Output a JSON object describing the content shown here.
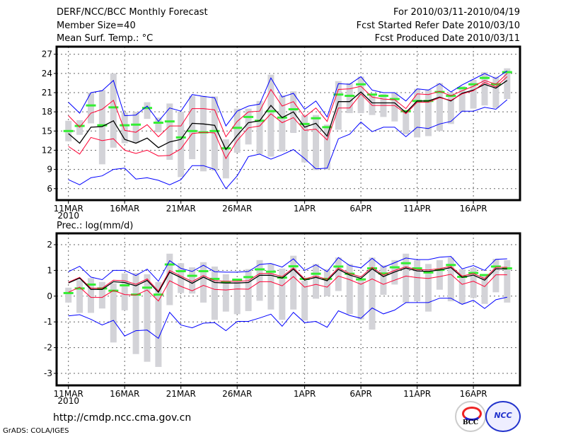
{
  "header": {
    "title": "DERF/NCC/BCC Monthly Forecast",
    "member_size": "Member Size=40",
    "variable": "Mean Surf. Temp.: °C",
    "period": "For 2010/03/11-2010/04/19",
    "started": "Fcst Started Refer Date 2010/03/10",
    "produced": "Fcst Produced Date 2010/03/11"
  },
  "footer": {
    "url": "http://cmdp.ncc.cma.gov.cn",
    "grads": "GrADS: COLA/IGES",
    "logo_bcc": "BCC",
    "logo_ncc": "NCC"
  },
  "colors": {
    "max_min": "#0000ff",
    "spread": "#ff0033",
    "mean": "#000000",
    "obs": "#33ee33",
    "bars": "#d3d3d8"
  },
  "chart_data": [
    {
      "type": "line",
      "title": "Mean Surf. Temp.: °C",
      "ylim": [
        4,
        28
      ],
      "y_ticks": [
        "6",
        "9",
        "12",
        "15",
        "18",
        "21",
        "24",
        "27"
      ],
      "x_ticks": [
        {
          "label": "11MAR",
          "index": 0
        },
        {
          "label": "16MAR",
          "index": 5
        },
        {
          "label": "21MAR",
          "index": 10
        },
        {
          "label": "26MAR",
          "index": 15
        },
        {
          "label": "1APR",
          "index": 21
        },
        {
          "label": "6APR",
          "index": 26
        },
        {
          "label": "11APR",
          "index": 31
        },
        {
          "label": "16APR",
          "index": 36
        }
      ],
      "x_sublabel": "2010",
      "x_range": [
        "2010/03/11",
        "2010/04/19"
      ],
      "grid": true,
      "series": [
        {
          "name": "max",
          "color": "#0000ff",
          "values": [
            19.5,
            17.8,
            21.0,
            21.3,
            22.9,
            17.4,
            17.5,
            18.9,
            16.5,
            18.6,
            18.1,
            20.7,
            20.4,
            20.2,
            15.8,
            18.1,
            18.9,
            19.2,
            23.3,
            20.3,
            20.9,
            18.4,
            19.7,
            17.2,
            22.4,
            22.3,
            23.5,
            21.4,
            21.0,
            21.0,
            19.7,
            21.6,
            21.4,
            22.4,
            21.1,
            22.2,
            23.1,
            24.0,
            23.2,
            24.4
          ]
        },
        {
          "name": "upper",
          "color": "#ff0033",
          "values": [
            17.4,
            15.6,
            17.8,
            18.4,
            19.8,
            15.1,
            14.8,
            16.0,
            14.1,
            15.8,
            15.8,
            18.5,
            18.5,
            18.3,
            14.1,
            16.5,
            18.0,
            18.1,
            21.5,
            18.9,
            19.6,
            17.2,
            18.6,
            16.5,
            21.5,
            21.6,
            22.0,
            20.3,
            20.0,
            19.9,
            18.5,
            20.8,
            20.7,
            21.2,
            20.5,
            21.3,
            22.0,
            22.9,
            22.3,
            24.0
          ]
        },
        {
          "name": "mean",
          "color": "#000000",
          "values": [
            14.6,
            13.1,
            15.6,
            15.7,
            16.6,
            13.7,
            13.1,
            13.9,
            12.4,
            13.3,
            13.7,
            16.2,
            16.1,
            15.9,
            12.1,
            14.3,
            16.3,
            16.6,
            19.0,
            17.1,
            18.0,
            15.6,
            16.2,
            14.2,
            19.6,
            19.6,
            21.1,
            19.4,
            19.4,
            19.4,
            17.9,
            19.7,
            19.7,
            20.3,
            19.7,
            20.9,
            21.4,
            22.3,
            21.7,
            22.9
          ]
        },
        {
          "name": "lower",
          "color": "#ff0033",
          "values": [
            12.6,
            11.4,
            14.0,
            13.5,
            13.8,
            12.0,
            11.5,
            12.0,
            11.1,
            11.2,
            12.2,
            14.6,
            14.8,
            14.7,
            10.7,
            13.5,
            15.5,
            15.8,
            17.7,
            16.3,
            17.1,
            15.1,
            15.3,
            13.6,
            18.6,
            18.6,
            20.8,
            19.0,
            19.0,
            19.0,
            17.7,
            19.5,
            19.5,
            20.2,
            19.8,
            20.8,
            21.3,
            22.6,
            21.9,
            23.5
          ]
        },
        {
          "name": "min",
          "color": "#0000ff",
          "values": [
            7.4,
            6.6,
            7.7,
            8.0,
            9.0,
            9.2,
            7.5,
            7.7,
            7.3,
            6.6,
            7.4,
            9.6,
            9.6,
            9.0,
            6.0,
            8.0,
            11.0,
            11.4,
            10.6,
            11.3,
            12.1,
            10.7,
            9.1,
            9.2,
            13.8,
            14.5,
            16.4,
            14.9,
            15.6,
            15.6,
            14.1,
            15.6,
            15.4,
            16.1,
            16.5,
            18.1,
            18.1,
            18.7,
            18.4,
            19.9
          ]
        }
      ],
      "obs": [
        15.0,
        15.8,
        19.0,
        15.9,
        18.7,
        15.9,
        16.0,
        18.6,
        16.3,
        16.5,
        14.0,
        15.0,
        14.8,
        15.0,
        12.3,
        15.5,
        17.2,
        16.6,
        18.1,
        17.1,
        18.4,
        16.1,
        17.0,
        15.6,
        20.7,
        20.5,
        22.3,
        20.7,
        20.5,
        20.0,
        18.1,
        19.7,
        19.7,
        21.1,
        20.5,
        21.7,
        22.3,
        23.3,
        22.3,
        24.2
      ],
      "bars": [
        [
          13.4,
          16.6
        ],
        [
          14.4,
          16.7
        ],
        [
          16.2,
          21.0
        ],
        [
          9.8,
          21.4
        ],
        [
          12.4,
          24.0
        ],
        [
          13.1,
          17.9
        ],
        [
          13.1,
          18.0
        ],
        [
          16.9,
          19.5
        ],
        [
          14.8,
          17.1
        ],
        [
          10.5,
          19.3
        ],
        [
          7.8,
          18.0
        ],
        [
          10.6,
          20.5
        ],
        [
          8.7,
          20.5
        ],
        [
          8.8,
          20.4
        ],
        [
          7.6,
          13.7
        ],
        [
          11.6,
          18.5
        ],
        [
          12.9,
          18.5
        ],
        [
          11.4,
          19.7
        ],
        [
          11.0,
          23.8
        ],
        [
          11.8,
          20.6
        ],
        [
          14.7,
          21.2
        ],
        [
          10.1,
          17.5
        ],
        [
          8.9,
          17.5
        ],
        [
          9.0,
          16.0
        ],
        [
          15.2,
          22.8
        ],
        [
          17.8,
          22.5
        ],
        [
          17.8,
          23.5
        ],
        [
          17.5,
          20.8
        ],
        [
          17.2,
          20.8
        ],
        [
          16.5,
          21.0
        ],
        [
          14.5,
          18.2
        ],
        [
          14.0,
          21.6
        ],
        [
          14.2,
          21.5
        ],
        [
          15.0,
          22.5
        ],
        [
          16.1,
          21.0
        ],
        [
          18.0,
          22.0
        ],
        [
          18.5,
          23.0
        ],
        [
          19.0,
          24.2
        ],
        [
          18.6,
          23.5
        ],
        [
          20.0,
          24.8
        ]
      ]
    },
    {
      "type": "line",
      "title": "Prec.: log(mm/d)",
      "ylim": [
        -3.5,
        2.5
      ],
      "y_ticks": [
        "-3",
        "-2",
        "-1",
        "0",
        "1",
        "2"
      ],
      "x_ticks": [
        {
          "label": "11MAR",
          "index": 0
        },
        {
          "label": "16MAR",
          "index": 5
        },
        {
          "label": "21MAR",
          "index": 10
        },
        {
          "label": "26MAR",
          "index": 15
        },
        {
          "label": "1APR",
          "index": 21
        },
        {
          "label": "6APR",
          "index": 26
        },
        {
          "label": "11APR",
          "index": 31
        },
        {
          "label": "16APR",
          "index": 36
        }
      ],
      "x_sublabel": "2010",
      "x_range": [
        "2010/03/11",
        "2010/04/19"
      ],
      "grid": true,
      "series": [
        {
          "name": "max",
          "color": "#0000ff",
          "values": [
            0.95,
            1.16,
            0.74,
            0.64,
            1.0,
            1.0,
            0.8,
            1.05,
            0.58,
            1.38,
            1.08,
            0.96,
            1.2,
            0.95,
            0.93,
            0.93,
            0.96,
            1.23,
            1.27,
            1.13,
            1.45,
            1.0,
            1.22,
            0.95,
            1.5,
            1.19,
            1.1,
            1.47,
            1.12,
            1.3,
            1.48,
            1.42,
            1.42,
            1.51,
            1.54,
            1.06,
            1.19,
            1.0,
            1.43,
            1.45
          ]
        },
        {
          "name": "upper",
          "color": "#ff0033",
          "values": [
            0.54,
            0.73,
            0.31,
            0.31,
            0.62,
            0.6,
            0.46,
            0.67,
            0.2,
            1.0,
            0.78,
            0.57,
            0.8,
            0.6,
            0.58,
            0.58,
            0.6,
            0.88,
            0.88,
            0.76,
            1.1,
            0.67,
            0.78,
            0.65,
            1.1,
            0.88,
            0.75,
            1.12,
            0.82,
            1.0,
            1.14,
            1.03,
            1.02,
            1.07,
            1.16,
            0.78,
            0.88,
            0.68,
            1.12,
            1.12
          ]
        },
        {
          "name": "mean",
          "color": "#000000",
          "values": [
            0.51,
            0.7,
            0.26,
            0.26,
            0.56,
            0.53,
            0.4,
            0.61,
            0.15,
            0.93,
            0.72,
            0.5,
            0.74,
            0.53,
            0.51,
            0.51,
            0.53,
            0.81,
            0.81,
            0.7,
            1.05,
            0.62,
            0.73,
            0.6,
            1.04,
            0.82,
            0.69,
            1.06,
            0.76,
            0.94,
            1.09,
            0.98,
            0.96,
            1.02,
            1.11,
            0.73,
            0.82,
            0.62,
            1.06,
            1.06
          ]
        },
        {
          "name": "lower",
          "color": "#ff0033",
          "values": [
            0.15,
            0.35,
            -0.05,
            -0.05,
            0.22,
            0.06,
            0.04,
            0.24,
            -0.19,
            0.6,
            0.38,
            0.21,
            0.42,
            0.26,
            0.24,
            0.28,
            0.27,
            0.56,
            0.56,
            0.4,
            0.76,
            0.35,
            0.46,
            0.35,
            0.78,
            0.64,
            0.46,
            0.67,
            0.46,
            0.62,
            0.78,
            0.72,
            0.69,
            0.76,
            0.85,
            0.46,
            0.58,
            0.37,
            0.83,
            0.83
          ]
        },
        {
          "name": "min",
          "color": "#0000ff",
          "values": [
            -0.77,
            -0.72,
            -0.9,
            -1.12,
            -0.94,
            -1.55,
            -1.34,
            -1.32,
            -1.64,
            -0.63,
            -1.12,
            -1.23,
            -1.05,
            -1.03,
            -1.34,
            -0.98,
            -0.98,
            -0.85,
            -0.7,
            -1.17,
            -0.63,
            -1.03,
            -0.98,
            -1.21,
            -0.57,
            -0.75,
            -0.86,
            -0.46,
            -0.69,
            -0.54,
            -0.25,
            -0.25,
            -0.25,
            -0.08,
            -0.08,
            -0.32,
            -0.16,
            -0.48,
            -0.14,
            -0.04
          ]
        }
      ],
      "obs": [
        0.12,
        0.3,
        0.45,
        0.3,
        0.21,
        0.42,
        0.06,
        0.33,
        0.06,
        1.23,
        0.97,
        0.79,
        0.97,
        0.67,
        0.54,
        0.64,
        0.74,
        1.04,
        0.95,
        0.72,
        1.16,
        0.67,
        0.87,
        0.67,
        1.15,
        0.87,
        0.65,
        1.08,
        0.88,
        1.12,
        1.28,
        1.08,
        0.92,
        1.02,
        1.21,
        0.75,
        0.9,
        0.82,
        1.15,
        1.08
      ],
      "bars": [
        [
          -0.25,
          0.33
        ],
        [
          -0.65,
          0.62
        ],
        [
          -0.65,
          0.7
        ],
        [
          -0.48,
          0.55
        ],
        [
          -1.8,
          0.5
        ],
        [
          -0.55,
          0.88
        ],
        [
          -2.25,
          0.9
        ],
        [
          -2.55,
          0.85
        ],
        [
          -2.75,
          0.55
        ],
        [
          -0.35,
          1.65
        ],
        [
          0.12,
          1.28
        ],
        [
          0.1,
          1.12
        ],
        [
          -0.25,
          1.32
        ],
        [
          -0.92,
          1.15
        ],
        [
          -0.6,
          0.85
        ],
        [
          -0.7,
          0.55
        ],
        [
          -0.58,
          1.05
        ],
        [
          -0.18,
          1.4
        ],
        [
          -0.52,
          1.25
        ],
        [
          -0.92,
          1.07
        ],
        [
          -0.52,
          1.57
        ],
        [
          -0.95,
          0.6
        ],
        [
          -0.1,
          1.25
        ],
        [
          0.0,
          1.05
        ],
        [
          0.2,
          1.5
        ],
        [
          -0.7,
          1.25
        ],
        [
          -0.9,
          0.7
        ],
        [
          -1.3,
          1.5
        ],
        [
          0.05,
          1.2
        ],
        [
          0.45,
          1.4
        ],
        [
          -0.25,
          1.65
        ],
        [
          -0.2,
          1.4
        ],
        [
          -0.6,
          1.25
        ],
        [
          0.25,
          1.4
        ],
        [
          -0.2,
          1.5
        ],
        [
          -0.3,
          1.05
        ],
        [
          -0.07,
          1.1
        ],
        [
          -0.3,
          0.8
        ],
        [
          0.15,
          1.45
        ],
        [
          -0.25,
          1.4
        ]
      ]
    }
  ]
}
